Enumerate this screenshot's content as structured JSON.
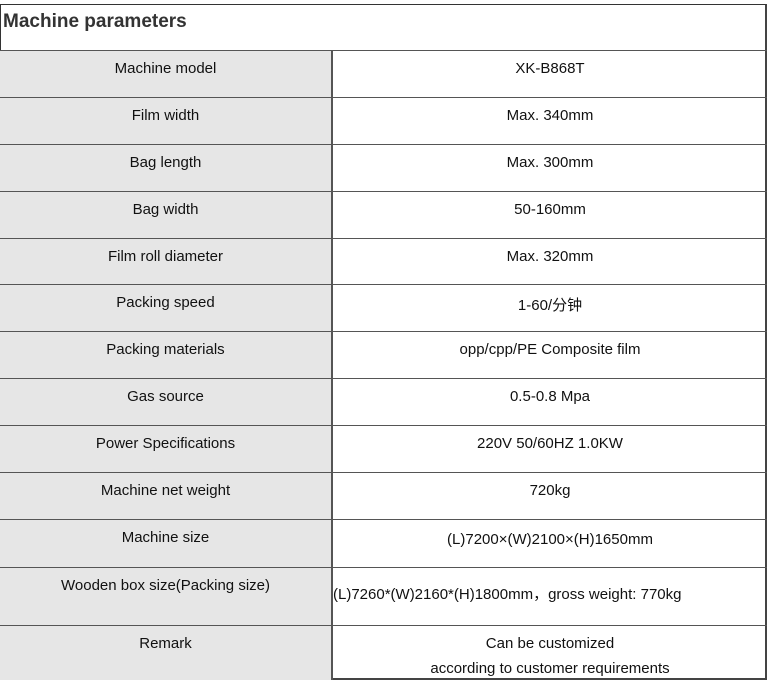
{
  "title": "Machine parameters",
  "rows": [
    {
      "label": "Machine model",
      "value": "XK-B868T"
    },
    {
      "label": "Film width",
      "value": "Max. 340mm"
    },
    {
      "label": "Bag length",
      "value": "Max. 300mm"
    },
    {
      "label": "Bag width",
      "value": "50-160mm"
    },
    {
      "label": "Film roll diameter",
      "value": "Max. 320mm"
    },
    {
      "label": "Packing speed",
      "value": "1-60/分钟"
    },
    {
      "label": "Packing materials",
      "value": "opp/cpp/PE Composite film"
    },
    {
      "label": "Gas source",
      "value": "0.5-0.8  Mpa"
    },
    {
      "label": "Power Specifications",
      "value": "220V   50/60HZ   1.0KW"
    },
    {
      "label": "Machine net weight",
      "value": "720kg"
    },
    {
      "label": "Machine size",
      "value": "(L)7200×(W)2100×(H)1650mm"
    },
    {
      "label": "Wooden box size(Packing size)",
      "value": "(L)7260*(W)2160*(H)1800mm，gross weight:   770kg"
    },
    {
      "label": "Remark",
      "value": "Can be customized",
      "value2": "according to customer requirements"
    }
  ]
}
